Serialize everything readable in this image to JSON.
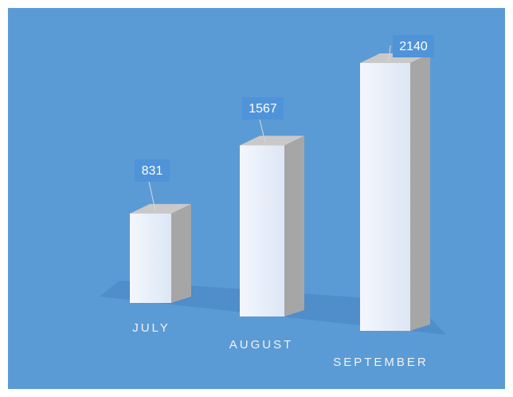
{
  "chart_data": {
    "type": "bar",
    "categories": [
      "JULY",
      "AUGUST",
      "SEPTEMBER"
    ],
    "values": [
      831,
      1567,
      2140
    ],
    "color": "#eaf0fa"
  }
}
